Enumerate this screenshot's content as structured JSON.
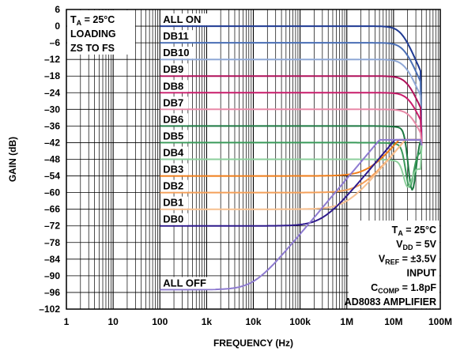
{
  "chart_data": {
    "type": "line",
    "xlabel": "FREQUENCY (Hz)",
    "ylabel": "GAIN (dB)",
    "x_scale": "log",
    "xlim": [
      1,
      100000000
    ],
    "ylim": [
      -102,
      6
    ],
    "x_ticks": [
      {
        "value": 1,
        "label": "1"
      },
      {
        "value": 10,
        "label": "10"
      },
      {
        "value": 100,
        "label": "100"
      },
      {
        "value": 1000,
        "label": "1k"
      },
      {
        "value": 10000,
        "label": "10k"
      },
      {
        "value": 100000,
        "label": "100k"
      },
      {
        "value": 1000000,
        "label": "1M"
      },
      {
        "value": 10000000,
        "label": "10M"
      },
      {
        "value": 100000000,
        "label": "100M"
      }
    ],
    "y_ticks": [
      {
        "value": 6,
        "label": "6"
      },
      {
        "value": 0,
        "label": "0"
      },
      {
        "value": -6,
        "label": "–6"
      },
      {
        "value": -12,
        "label": "–12"
      },
      {
        "value": -18,
        "label": "–18"
      },
      {
        "value": -24,
        "label": "–24"
      },
      {
        "value": -30,
        "label": "–30"
      },
      {
        "value": -36,
        "label": "–36"
      },
      {
        "value": -42,
        "label": "–42"
      },
      {
        "value": -48,
        "label": "–48"
      },
      {
        "value": -54,
        "label": "–54"
      },
      {
        "value": -60,
        "label": "–60"
      },
      {
        "value": -66,
        "label": "–66"
      },
      {
        "value": -72,
        "label": "–72"
      },
      {
        "value": -78,
        "label": "–78"
      },
      {
        "value": -84,
        "label": "–84"
      },
      {
        "value": -90,
        "label": "–90"
      },
      {
        "value": -96,
        "label": "–96"
      },
      {
        "value": -102,
        "label": "–102"
      }
    ],
    "grid": true,
    "series": [
      {
        "name": "ALL ON",
        "level": 0,
        "color": "#1f3a93",
        "kind": "rolloff",
        "f3db": 15000000
      },
      {
        "name": "DB11",
        "level": -6,
        "color": "#4a6fb5",
        "kind": "rolloff",
        "f3db": 17000000
      },
      {
        "name": "DB10",
        "level": -12,
        "color": "#8fa8d6",
        "kind": "rolloff",
        "f3db": 18000000
      },
      {
        "name": "DB9",
        "level": -18,
        "color": "#b0115a",
        "kind": "rolloff",
        "f3db": 20000000
      },
      {
        "name": "DB8",
        "level": -24,
        "color": "#c81d6b",
        "kind": "rolloff",
        "f3db": 22000000
      },
      {
        "name": "DB7",
        "level": -30,
        "color": "#e88aa8",
        "kind": "rolloff",
        "f3db": 24000000
      },
      {
        "name": "DB6",
        "level": -36,
        "color": "#1e7a43",
        "kind": "notch",
        "notch_f": 25000000,
        "notch_depth": -57
      },
      {
        "name": "DB5",
        "level": -42,
        "color": "#3a9a5a",
        "kind": "notch",
        "notch_f": 22000000,
        "notch_depth": -56
      },
      {
        "name": "DB4",
        "level": -48,
        "color": "#8ccf9c",
        "kind": "notch",
        "notch_f": 20000000,
        "notch_depth": -56
      },
      {
        "name": "DB3",
        "level": -54,
        "color": "#f07e1a",
        "kind": "rise",
        "corner_f": 3000000
      },
      {
        "name": "DB2",
        "level": -60,
        "color": "#f4a05a",
        "kind": "rise",
        "corner_f": 2000000
      },
      {
        "name": "DB1",
        "level": -66,
        "color": "#f7c090",
        "kind": "rise",
        "corner_f": 1000000
      },
      {
        "name": "DB0",
        "level": -72,
        "color": "#2e1a8c",
        "kind": "rise",
        "corner_f": 300000
      },
      {
        "name": "ALL OFF",
        "level": -95,
        "color": "#8e7bd0",
        "kind": "rise",
        "corner_f": 10000
      }
    ],
    "converge": {
      "frequency": 40000000,
      "level": -43
    },
    "annotations": {
      "top_left": [
        {
          "main": "T",
          "sub": "A",
          "rest": " = 25°C"
        },
        {
          "main": "LOADING",
          "sub": "",
          "rest": ""
        },
        {
          "main": "ZS TO FS",
          "sub": "",
          "rest": ""
        }
      ],
      "bottom_right": [
        {
          "main": "T",
          "sub": "A",
          "rest": " = 25°C"
        },
        {
          "main": "V",
          "sub": "DD",
          "rest": " = 5V"
        },
        {
          "main": "V",
          "sub": "REF",
          "rest": " = ±3.5V"
        },
        {
          "main": "INPUT",
          "sub": "",
          "rest": ""
        },
        {
          "main": "C",
          "sub": "COMP",
          "rest": " = 1.8pF"
        },
        {
          "main": "AD8083 AMPLIFIER",
          "sub": "",
          "rest": ""
        }
      ]
    }
  }
}
